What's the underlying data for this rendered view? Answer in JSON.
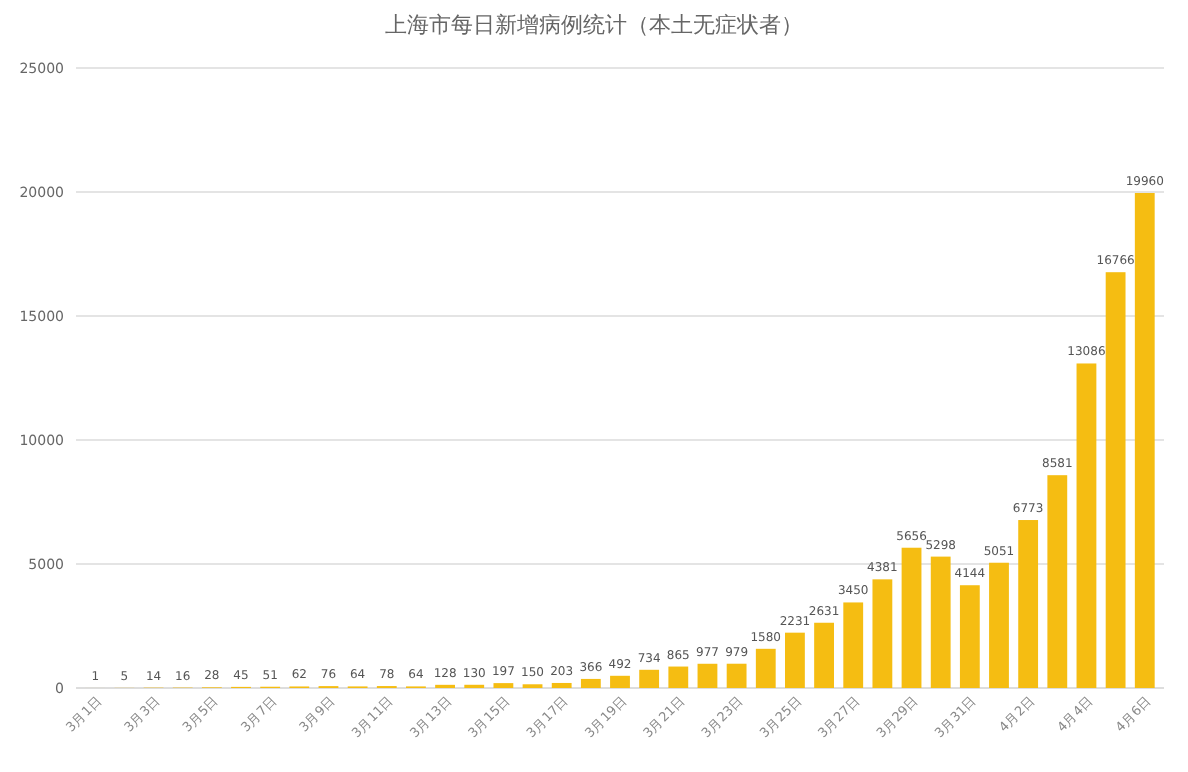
{
  "chart_data": {
    "type": "bar",
    "title": "上海市每日新增病例统计（本土无症状者）",
    "categories": [
      "3月1日",
      null,
      "3月3日",
      null,
      "3月5日",
      null,
      "3月7日",
      null,
      "3月9日",
      null,
      "3月11日",
      null,
      "3月13日",
      null,
      "3月15日",
      null,
      "3月17日",
      null,
      "3月19日",
      null,
      "3月21日",
      null,
      "3月23日",
      null,
      "3月25日",
      null,
      "3月27日",
      null,
      "3月29日",
      null,
      "3月31日",
      null,
      "4月2日",
      null,
      "4月4日",
      null,
      "4月6日"
    ],
    "values": [
      1,
      5,
      14,
      16,
      28,
      45,
      51,
      62,
      76,
      64,
      78,
      64,
      128,
      130,
      197,
      150,
      203,
      366,
      492,
      734,
      865,
      977,
      979,
      1580,
      2231,
      2631,
      3450,
      4381,
      5656,
      5298,
      4144,
      5051,
      6773,
      8581,
      13086,
      16766,
      19960
    ],
    "color": "#f5bd12",
    "ylim": [
      0,
      25000
    ],
    "yticks": [
      0,
      5000,
      10000,
      15000,
      20000,
      25000
    ],
    "grid": "y",
    "data_labels": true
  }
}
